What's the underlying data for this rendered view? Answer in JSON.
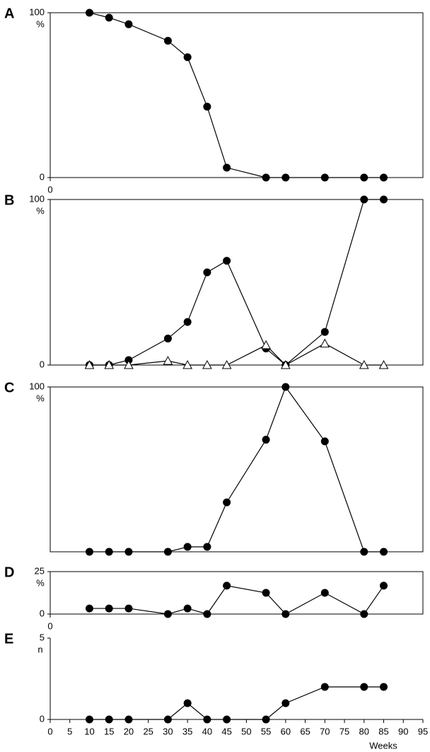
{
  "chart_data": [
    {
      "type": "line",
      "panel_label": "A",
      "ylabel": "%",
      "xlim": [
        0,
        95
      ],
      "ylim": [
        0,
        100
      ],
      "yticks": [
        0,
        100
      ],
      "xticks": [
        0
      ],
      "x": [
        10,
        15,
        20,
        30,
        35,
        40,
        45,
        55,
        60,
        70,
        80,
        85
      ],
      "series": [
        {
          "marker": "circle",
          "color": "#000000",
          "values": [
            100,
            97,
            93,
            83,
            73,
            43,
            6,
            0,
            0,
            0,
            0,
            0
          ]
        }
      ]
    },
    {
      "type": "line",
      "panel_label": "B",
      "ylabel": "%",
      "xlim": [
        0,
        95
      ],
      "ylim": [
        0,
        100
      ],
      "yticks": [
        0,
        100
      ],
      "xticks": [],
      "x": [
        10,
        15,
        20,
        30,
        35,
        40,
        45,
        55,
        60,
        70,
        80,
        85
      ],
      "series": [
        {
          "marker": "circle",
          "color": "#000000",
          "values": [
            0,
            0,
            3,
            16,
            26,
            56,
            63,
            10,
            0,
            20,
            100,
            100
          ]
        },
        {
          "marker": "triangle",
          "color": "#000000",
          "values": [
            0,
            0,
            0,
            2.5,
            0,
            0,
            0,
            12,
            0,
            13,
            0,
            0
          ]
        }
      ]
    },
    {
      "type": "line",
      "panel_label": "C",
      "ylabel": "%",
      "xlim": [
        0,
        95
      ],
      "ylim": [
        0,
        100
      ],
      "yticks": [
        100
      ],
      "xticks": [],
      "x": [
        10,
        15,
        20,
        30,
        35,
        40,
        45,
        55,
        60,
        70,
        80,
        85
      ],
      "series": [
        {
          "marker": "circle",
          "color": "#000000",
          "values": [
            0,
            0,
            0,
            0,
            3,
            3,
            30,
            68,
            100,
            67,
            0,
            0
          ]
        }
      ]
    },
    {
      "type": "line",
      "panel_label": "D",
      "ylabel": "%",
      "xlim": [
        0,
        95
      ],
      "ylim": [
        0,
        25
      ],
      "yticks": [
        0,
        25
      ],
      "xticks": [
        0
      ],
      "x": [
        10,
        15,
        20,
        30,
        35,
        40,
        45,
        55,
        60,
        70,
        80,
        85
      ],
      "series": [
        {
          "marker": "circle",
          "color": "#000000",
          "values": [
            3.3,
            3.3,
            3.3,
            0,
            3.3,
            0,
            16.7,
            12.5,
            0,
            12.5,
            0,
            16.7
          ]
        }
      ]
    },
    {
      "type": "line",
      "panel_label": "E",
      "ylabel": "n",
      "xlabel": "Weeks",
      "xlim": [
        0,
        95
      ],
      "ylim": [
        0,
        5
      ],
      "yticks": [
        0,
        5
      ],
      "xticks": [
        0,
        5,
        10,
        15,
        20,
        25,
        30,
        35,
        40,
        45,
        50,
        55,
        60,
        65,
        70,
        75,
        80,
        85,
        90,
        95
      ],
      "x": [
        10,
        15,
        20,
        30,
        35,
        40,
        45,
        55,
        60,
        70,
        80,
        85
      ],
      "series": [
        {
          "marker": "circle",
          "color": "#000000",
          "values": [
            0,
            0,
            0,
            0,
            1,
            0,
            0,
            0,
            1,
            2,
            2,
            2
          ]
        }
      ]
    }
  ]
}
